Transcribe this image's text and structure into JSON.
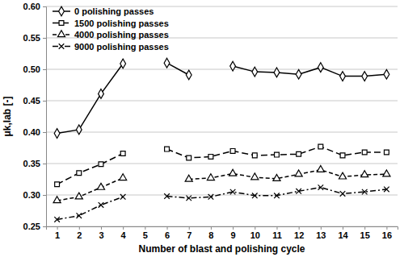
{
  "chart_data": {
    "type": "line",
    "x_label": "Number of blast and polishing cycle",
    "y_label": "μk,lab [-]",
    "categories": [
      "1",
      "2",
      "3",
      "4",
      "5",
      "6",
      "7",
      "8",
      "9",
      "10",
      "11",
      "12",
      "13",
      "14",
      "15",
      "16"
    ],
    "ylim": [
      0.25,
      0.6
    ],
    "yticks": [
      {
        "value": 0.25,
        "label": "0.25"
      },
      {
        "value": 0.3,
        "label": "0.30"
      },
      {
        "value": 0.35,
        "label": "0.35"
      },
      {
        "value": 0.4,
        "label": "0.40"
      },
      {
        "value": 0.45,
        "label": "0.45"
      },
      {
        "value": 0.5,
        "label": "0.50"
      },
      {
        "value": 0.55,
        "label": "0.55"
      },
      {
        "value": 0.6,
        "label": "0.60"
      }
    ],
    "grid": true,
    "legend": "top-left",
    "series": [
      {
        "name": "0 polishing passes",
        "color": "#000000",
        "marker": "diamond",
        "line_style": "solid",
        "values": [
          0.398,
          0.404,
          0.461,
          0.509,
          null,
          0.51,
          0.491,
          null,
          0.505,
          0.496,
          0.495,
          0.492,
          0.503,
          0.489,
          0.489,
          0.492
        ]
      },
      {
        "name": "1500 polishing passes",
        "color": "#000000",
        "marker": "square",
        "line_style": "long_dash",
        "values": [
          0.317,
          0.335,
          0.349,
          0.366,
          null,
          0.373,
          0.359,
          0.361,
          0.37,
          0.363,
          0.364,
          0.365,
          0.377,
          0.363,
          0.368,
          0.368
        ]
      },
      {
        "name": "4000 polishing passes",
        "color": "#000000",
        "marker": "triangle",
        "line_style": "dashed",
        "values": [
          0.291,
          0.297,
          0.312,
          0.327,
          null,
          null,
          0.325,
          0.327,
          0.334,
          0.328,
          0.326,
          0.333,
          0.34,
          0.329,
          0.332,
          0.333
        ]
      },
      {
        "name": "9000 polishing passes",
        "color": "#000000",
        "marker": "cross",
        "line_style": "dash_dot",
        "values": [
          0.261,
          0.267,
          0.284,
          0.297,
          null,
          0.298,
          0.295,
          0.297,
          0.305,
          0.299,
          0.299,
          0.306,
          0.312,
          0.302,
          0.305,
          0.309
        ]
      }
    ]
  }
}
